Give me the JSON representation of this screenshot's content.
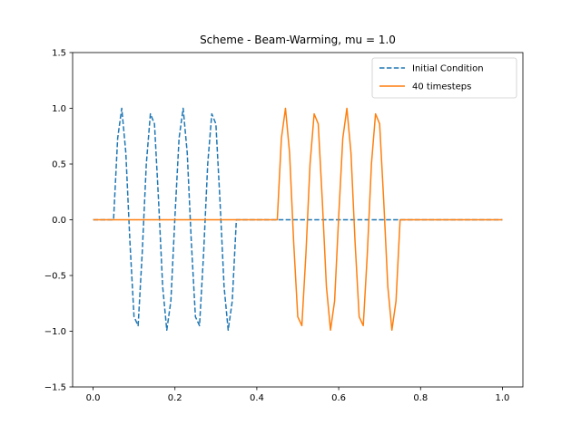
{
  "chart_data": {
    "type": "line",
    "title": "Scheme - Beam-Warming, mu = 1.0",
    "xlabel": "",
    "ylabel": "",
    "xlim": [
      -0.05,
      1.05
    ],
    "ylim": [
      -1.5,
      1.5
    ],
    "xticks": [
      0.0,
      0.2,
      0.4,
      0.6,
      0.8,
      1.0
    ],
    "xtick_labels": [
      "0.0",
      "0.2",
      "0.4",
      "0.6",
      "0.8",
      "1.0"
    ],
    "yticks": [
      -1.5,
      -1.0,
      -0.5,
      0.0,
      0.5,
      1.0,
      1.5
    ],
    "ytick_labels": [
      "−1.5",
      "−1.0",
      "−0.5",
      "0.0",
      "0.5",
      "1.0",
      "1.5"
    ],
    "grid": false,
    "legend_position": "top-right",
    "series": [
      {
        "name": "Initial Condition",
        "color": "#1f77b4",
        "linestyle": "dashed",
        "x": [
          0.0,
          0.05,
          0.06,
          0.07,
          0.08,
          0.09,
          0.1,
          0.11,
          0.12,
          0.13,
          0.14,
          0.15,
          0.16,
          0.17,
          0.18,
          0.19,
          0.2,
          0.21,
          0.22,
          0.23,
          0.24,
          0.25,
          0.26,
          0.27,
          0.28,
          0.29,
          0.3,
          0.31,
          0.32,
          0.33,
          0.34,
          0.35,
          1.0
        ],
        "y": [
          0.0,
          0.0,
          0.73,
          1.0,
          0.6,
          -0.2,
          -0.87,
          -0.95,
          -0.3,
          0.5,
          0.95,
          0.86,
          0.17,
          -0.6,
          -0.99,
          -0.73,
          0.03,
          0.73,
          1.0,
          0.6,
          -0.2,
          -0.87,
          -0.95,
          -0.3,
          0.5,
          0.95,
          0.86,
          0.17,
          -0.6,
          -0.99,
          -0.73,
          0.0,
          0.0
        ]
      },
      {
        "name": "40 timesteps",
        "color": "#ff7f0e",
        "linestyle": "solid",
        "x": [
          0.0,
          0.45,
          0.46,
          0.47,
          0.48,
          0.49,
          0.5,
          0.51,
          0.52,
          0.53,
          0.54,
          0.55,
          0.56,
          0.57,
          0.58,
          0.59,
          0.6,
          0.61,
          0.62,
          0.63,
          0.64,
          0.65,
          0.66,
          0.67,
          0.68,
          0.69,
          0.7,
          0.71,
          0.72,
          0.73,
          0.74,
          0.75,
          1.0
        ],
        "y": [
          0.0,
          0.0,
          0.73,
          1.0,
          0.6,
          -0.2,
          -0.87,
          -0.95,
          -0.3,
          0.5,
          0.95,
          0.86,
          0.17,
          -0.6,
          -0.99,
          -0.73,
          0.03,
          0.73,
          1.0,
          0.6,
          -0.2,
          -0.87,
          -0.95,
          -0.3,
          0.5,
          0.95,
          0.86,
          0.17,
          -0.6,
          -0.99,
          -0.73,
          0.0,
          0.0
        ]
      }
    ]
  }
}
